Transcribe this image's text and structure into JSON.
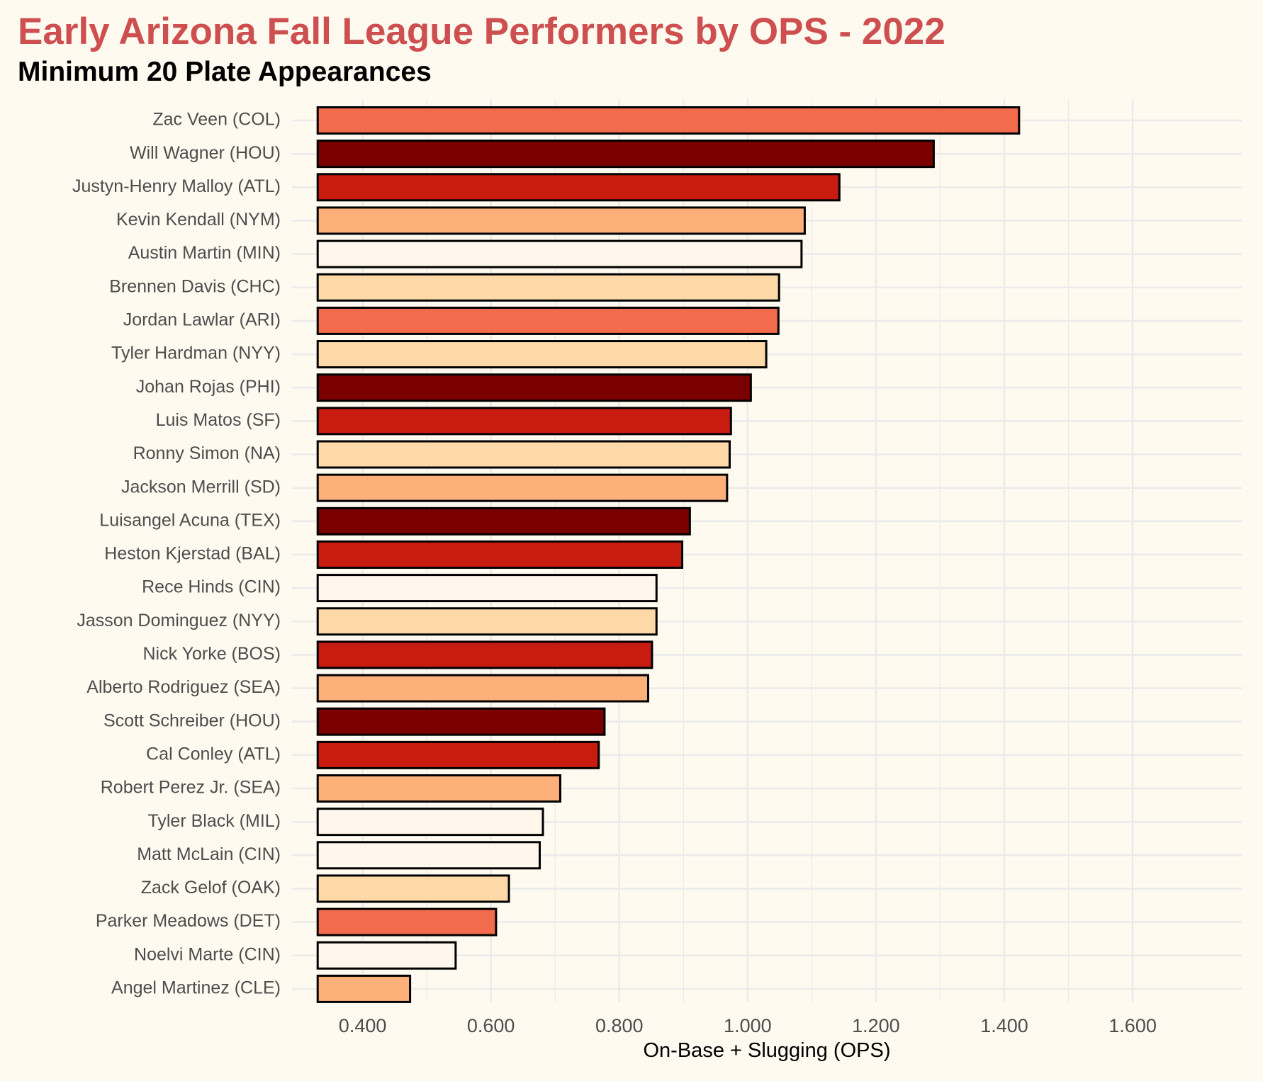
{
  "chart_data": {
    "type": "bar",
    "orientation": "horizontal",
    "title": "Early Arizona Fall League Performers by OPS - 2022",
    "subtitle": "Minimum 20 Plate Appearances",
    "xlabel": "On-Base + Slugging (OPS)",
    "ylabel": "",
    "xlim": [
      0.29,
      1.77
    ],
    "bar_base": 0.33,
    "xticks": [
      0.4,
      0.6,
      0.8,
      1.0,
      1.2,
      1.4,
      1.6
    ],
    "xtick_labels": [
      "0.400",
      "0.600",
      "0.800",
      "1.000",
      "1.200",
      "1.400",
      "1.600"
    ],
    "grid": true,
    "legend": "none",
    "categories": [
      "Zac Veen (COL)",
      "Will Wagner (HOU)",
      "Justyn-Henry Malloy (ATL)",
      "Kevin Kendall (NYM)",
      "Austin Martin (MIN)",
      "Brennen Davis (CHC)",
      "Jordan Lawlar (ARI)",
      "Tyler Hardman (NYY)",
      "Johan Rojas (PHI)",
      "Luis Matos (SF)",
      "Ronny Simon (NA)",
      "Jackson Merrill (SD)",
      "Luisangel Acuna (TEX)",
      "Heston Kjerstad (BAL)",
      "Rece Hinds (CIN)",
      "Jasson Dominguez (NYY)",
      "Nick Yorke (BOS)",
      "Alberto Rodriguez (SEA)",
      "Scott Schreiber (HOU)",
      "Cal Conley (ATL)",
      "Robert Perez Jr. (SEA)",
      "Tyler Black (MIL)",
      "Matt McLain (CIN)",
      "Zack Gelof (OAK)",
      "Parker Meadows (DET)",
      "Noelvi Marte (CIN)",
      "Angel Martinez (CLE)"
    ],
    "values": [
      1.423,
      1.29,
      1.143,
      1.089,
      1.084,
      1.049,
      1.048,
      1.029,
      1.005,
      0.974,
      0.972,
      0.968,
      0.91,
      0.898,
      0.858,
      0.858,
      0.851,
      0.845,
      0.777,
      0.768,
      0.708,
      0.681,
      0.676,
      0.628,
      0.608,
      0.545,
      0.474
    ],
    "colors": [
      "#f26b4d",
      "#7a0000",
      "#c81c11",
      "#fdb07a",
      "#fff7ec",
      "#fdd9a8",
      "#f26b4d",
      "#fdd9a8",
      "#7a0000",
      "#c81c11",
      "#fdd9a8",
      "#fdb07a",
      "#7a0000",
      "#c81c11",
      "#fff7ec",
      "#fdd9a8",
      "#c81c11",
      "#fdb07a",
      "#7a0000",
      "#c81c11",
      "#fdb07a",
      "#fff7ec",
      "#fff7ec",
      "#fdd9a8",
      "#f26b4d",
      "#fff7ec",
      "#fdb07a"
    ],
    "title_color": "#cd4f4f",
    "background_color": "#fffaf0",
    "bar_outline_color": "#000000",
    "grid_color": "#ebebeb"
  }
}
